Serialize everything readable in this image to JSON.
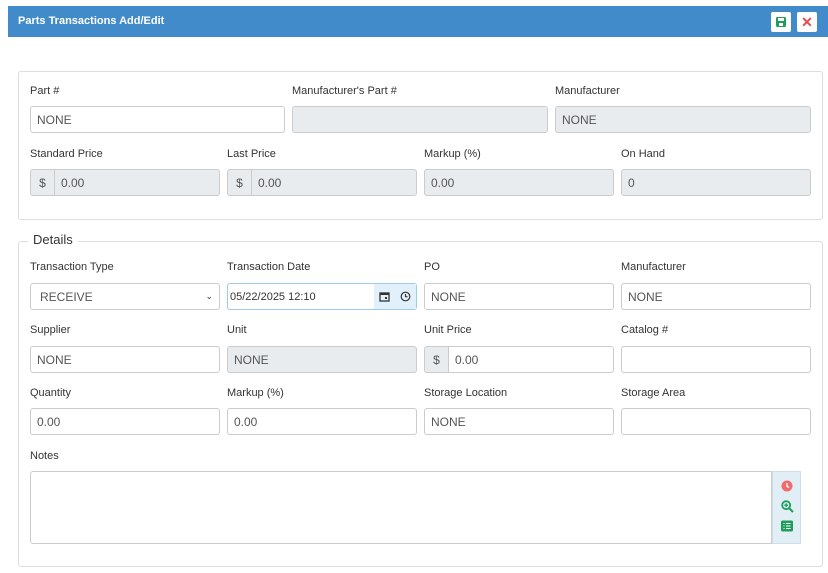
{
  "header": {
    "title": "Parts Transactions Add/Edit",
    "save_icon": "save-icon",
    "close_icon": "close-icon",
    "close_glyph": "✕"
  },
  "part": {
    "part_no": {
      "label": "Part #",
      "value": "NONE"
    },
    "mfr_part_no": {
      "label": "Manufacturer's Part #",
      "value": ""
    },
    "manufacturer": {
      "label": "Manufacturer",
      "value": "NONE"
    },
    "standard_price": {
      "label": "Standard Price",
      "prefix": "$",
      "value": "0.00"
    },
    "last_price": {
      "label": "Last Price",
      "prefix": "$",
      "value": "0.00"
    },
    "markup": {
      "label": "Markup (%)",
      "value": "0.00"
    },
    "on_hand": {
      "label": "On Hand",
      "value": "0"
    }
  },
  "details": {
    "legend": "Details",
    "transaction_type": {
      "label": "Transaction Type",
      "value": "RECEIVE"
    },
    "transaction_date": {
      "label": "Transaction Date",
      "value": "05/22/2025 12:10"
    },
    "po": {
      "label": "PO",
      "value": "NONE"
    },
    "manufacturer": {
      "label": "Manufacturer",
      "value": "NONE"
    },
    "supplier": {
      "label": "Supplier",
      "value": "NONE"
    },
    "unit": {
      "label": "Unit",
      "value": "NONE"
    },
    "unit_price": {
      "label": "Unit Price",
      "prefix": "$",
      "value": "0.00"
    },
    "catalog": {
      "label": "Catalog #",
      "value": ""
    },
    "quantity": {
      "label": "Quantity",
      "value": "0.00"
    },
    "markup": {
      "label": "Markup (%)",
      "value": "0.00"
    },
    "storage_location": {
      "label": "Storage Location",
      "value": "NONE"
    },
    "storage_area": {
      "label": "Storage Area",
      "value": ""
    },
    "notes": {
      "label": "Notes",
      "value": ""
    }
  },
  "colors": {
    "header": "#428bca",
    "save": "#1e9e5a",
    "close": "#e94b4b"
  }
}
